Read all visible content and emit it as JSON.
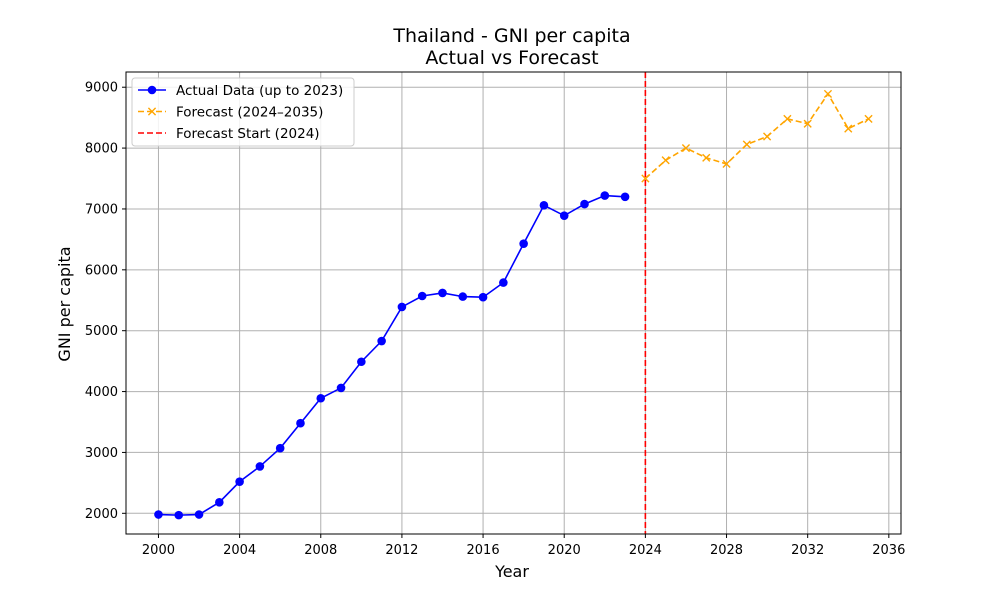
{
  "chart_data": {
    "type": "line",
    "title": "Thailand - GNI per capita",
    "subtitle": "Actual vs Forecast",
    "xlabel": "Year",
    "ylabel": "GNI per capita",
    "xlim": [
      1998.4,
      2036.6
    ],
    "ylim": [
      1660,
      9250
    ],
    "xticks": [
      2000,
      2004,
      2008,
      2012,
      2016,
      2020,
      2024,
      2028,
      2032,
      2036
    ],
    "yticks": [
      2000,
      3000,
      4000,
      5000,
      6000,
      7000,
      8000,
      9000
    ],
    "grid": true,
    "legend_position": "top-left",
    "series": [
      {
        "name": "Actual Data (up to 2023)",
        "color": "#0000ff",
        "linestyle": "solid",
        "marker": "circle",
        "x": [
          2000,
          2001,
          2002,
          2003,
          2004,
          2005,
          2006,
          2007,
          2008,
          2009,
          2010,
          2011,
          2012,
          2013,
          2014,
          2015,
          2016,
          2017,
          2018,
          2019,
          2020,
          2021,
          2022,
          2023
        ],
        "y": [
          1980,
          1970,
          1980,
          2180,
          2520,
          2770,
          3070,
          3480,
          3890,
          4060,
          4490,
          4830,
          5390,
          5570,
          5620,
          5560,
          5550,
          5790,
          6430,
          7060,
          6890,
          7080,
          7220,
          7200
        ]
      },
      {
        "name": "Forecast (2024–2035)",
        "color": "#ffa500",
        "linestyle": "dashed",
        "marker": "x",
        "x": [
          2024,
          2025,
          2026,
          2027,
          2028,
          2029,
          2030,
          2031,
          2032,
          2033,
          2034,
          2035
        ],
        "y": [
          7500,
          7800,
          8000,
          7840,
          7740,
          8060,
          8190,
          8480,
          8400,
          8890,
          8320,
          8480
        ]
      }
    ],
    "vlines": [
      {
        "name": "Forecast Start (2024)",
        "x": 2024,
        "color": "#ff0000",
        "linestyle": "dashed"
      }
    ]
  }
}
